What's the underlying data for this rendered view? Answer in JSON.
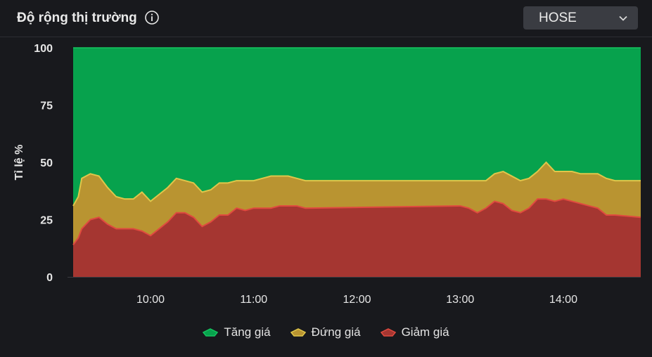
{
  "header": {
    "title": "Độ rộng thị trường",
    "info_icon": "info-icon",
    "exchange_select": {
      "value": "HOSE",
      "icon": "chevron-down-icon"
    }
  },
  "colors": {
    "background": "#18191d",
    "up": "#07a24d",
    "unchanged": "#b99431",
    "down": "#a53631",
    "up_line": "#15c45f",
    "unchanged_line": "#e0c64a",
    "down_line": "#e04a3f"
  },
  "chart_data": {
    "type": "area",
    "stacked": true,
    "ylabel": "Tỉ lệ %",
    "ylim": [
      0,
      100
    ],
    "yticks": [
      0,
      25,
      50,
      75,
      100
    ],
    "xlim": [
      "09:15",
      "14:45"
    ],
    "xticks": [
      "10:00",
      "11:00",
      "12:00",
      "13:00",
      "14:00"
    ],
    "x": [
      "09:15",
      "09:18",
      "09:20",
      "09:25",
      "09:30",
      "09:35",
      "09:40",
      "09:45",
      "09:50",
      "09:55",
      "10:00",
      "10:05",
      "10:10",
      "10:15",
      "10:20",
      "10:25",
      "10:30",
      "10:35",
      "10:40",
      "10:45",
      "10:50",
      "10:55",
      "11:00",
      "11:05",
      "11:10",
      "11:15",
      "11:20",
      "11:25",
      "11:30",
      "13:00",
      "13:05",
      "13:10",
      "13:15",
      "13:20",
      "13:25",
      "13:30",
      "13:35",
      "13:40",
      "13:45",
      "13:50",
      "13:55",
      "14:00",
      "14:05",
      "14:10",
      "14:15",
      "14:20",
      "14:25",
      "14:30",
      "14:45"
    ],
    "series": [
      {
        "name": "Giảm giá",
        "values": [
          14,
          17,
          21,
          25,
          26,
          23,
          21,
          21,
          21,
          20,
          18,
          21,
          24,
          28,
          28,
          26,
          22,
          24,
          27,
          27,
          30,
          29,
          30,
          30,
          30,
          31,
          31,
          31,
          30,
          31,
          30,
          28,
          30,
          33,
          32,
          29,
          28,
          30,
          34,
          34,
          33,
          34,
          33,
          32,
          31,
          30,
          27,
          27,
          26
        ]
      },
      {
        "name": "Đứng giá",
        "values": [
          17,
          18,
          22,
          20,
          18,
          16,
          14,
          13,
          13,
          17,
          15,
          15,
          15,
          15,
          14,
          15,
          15,
          14,
          14,
          14,
          12,
          13,
          12,
          13,
          14,
          13,
          13,
          12,
          12,
          11,
          12,
          14,
          12,
          12,
          14,
          15,
          14,
          13,
          12,
          16,
          13,
          12,
          13,
          13,
          14,
          15,
          16,
          15,
          16
        ]
      },
      {
        "name": "Tăng giá",
        "values": [
          69,
          65,
          57,
          55,
          56,
          61,
          65,
          66,
          66,
          63,
          67,
          64,
          61,
          57,
          58,
          59,
          63,
          62,
          59,
          59,
          58,
          58,
          58,
          57,
          56,
          56,
          56,
          57,
          58,
          58,
          58,
          58,
          58,
          55,
          54,
          56,
          58,
          57,
          54,
          50,
          54,
          54,
          54,
          55,
          55,
          55,
          57,
          58,
          58
        ]
      }
    ]
  },
  "legend": {
    "items": [
      {
        "label": "Tăng giá",
        "color": "#07a24d",
        "border": "#15c45f"
      },
      {
        "label": "Đứng giá",
        "color": "#b99431",
        "border": "#e0c64a"
      },
      {
        "label": "Giảm giá",
        "color": "#a53631",
        "border": "#e04a3f"
      }
    ]
  }
}
